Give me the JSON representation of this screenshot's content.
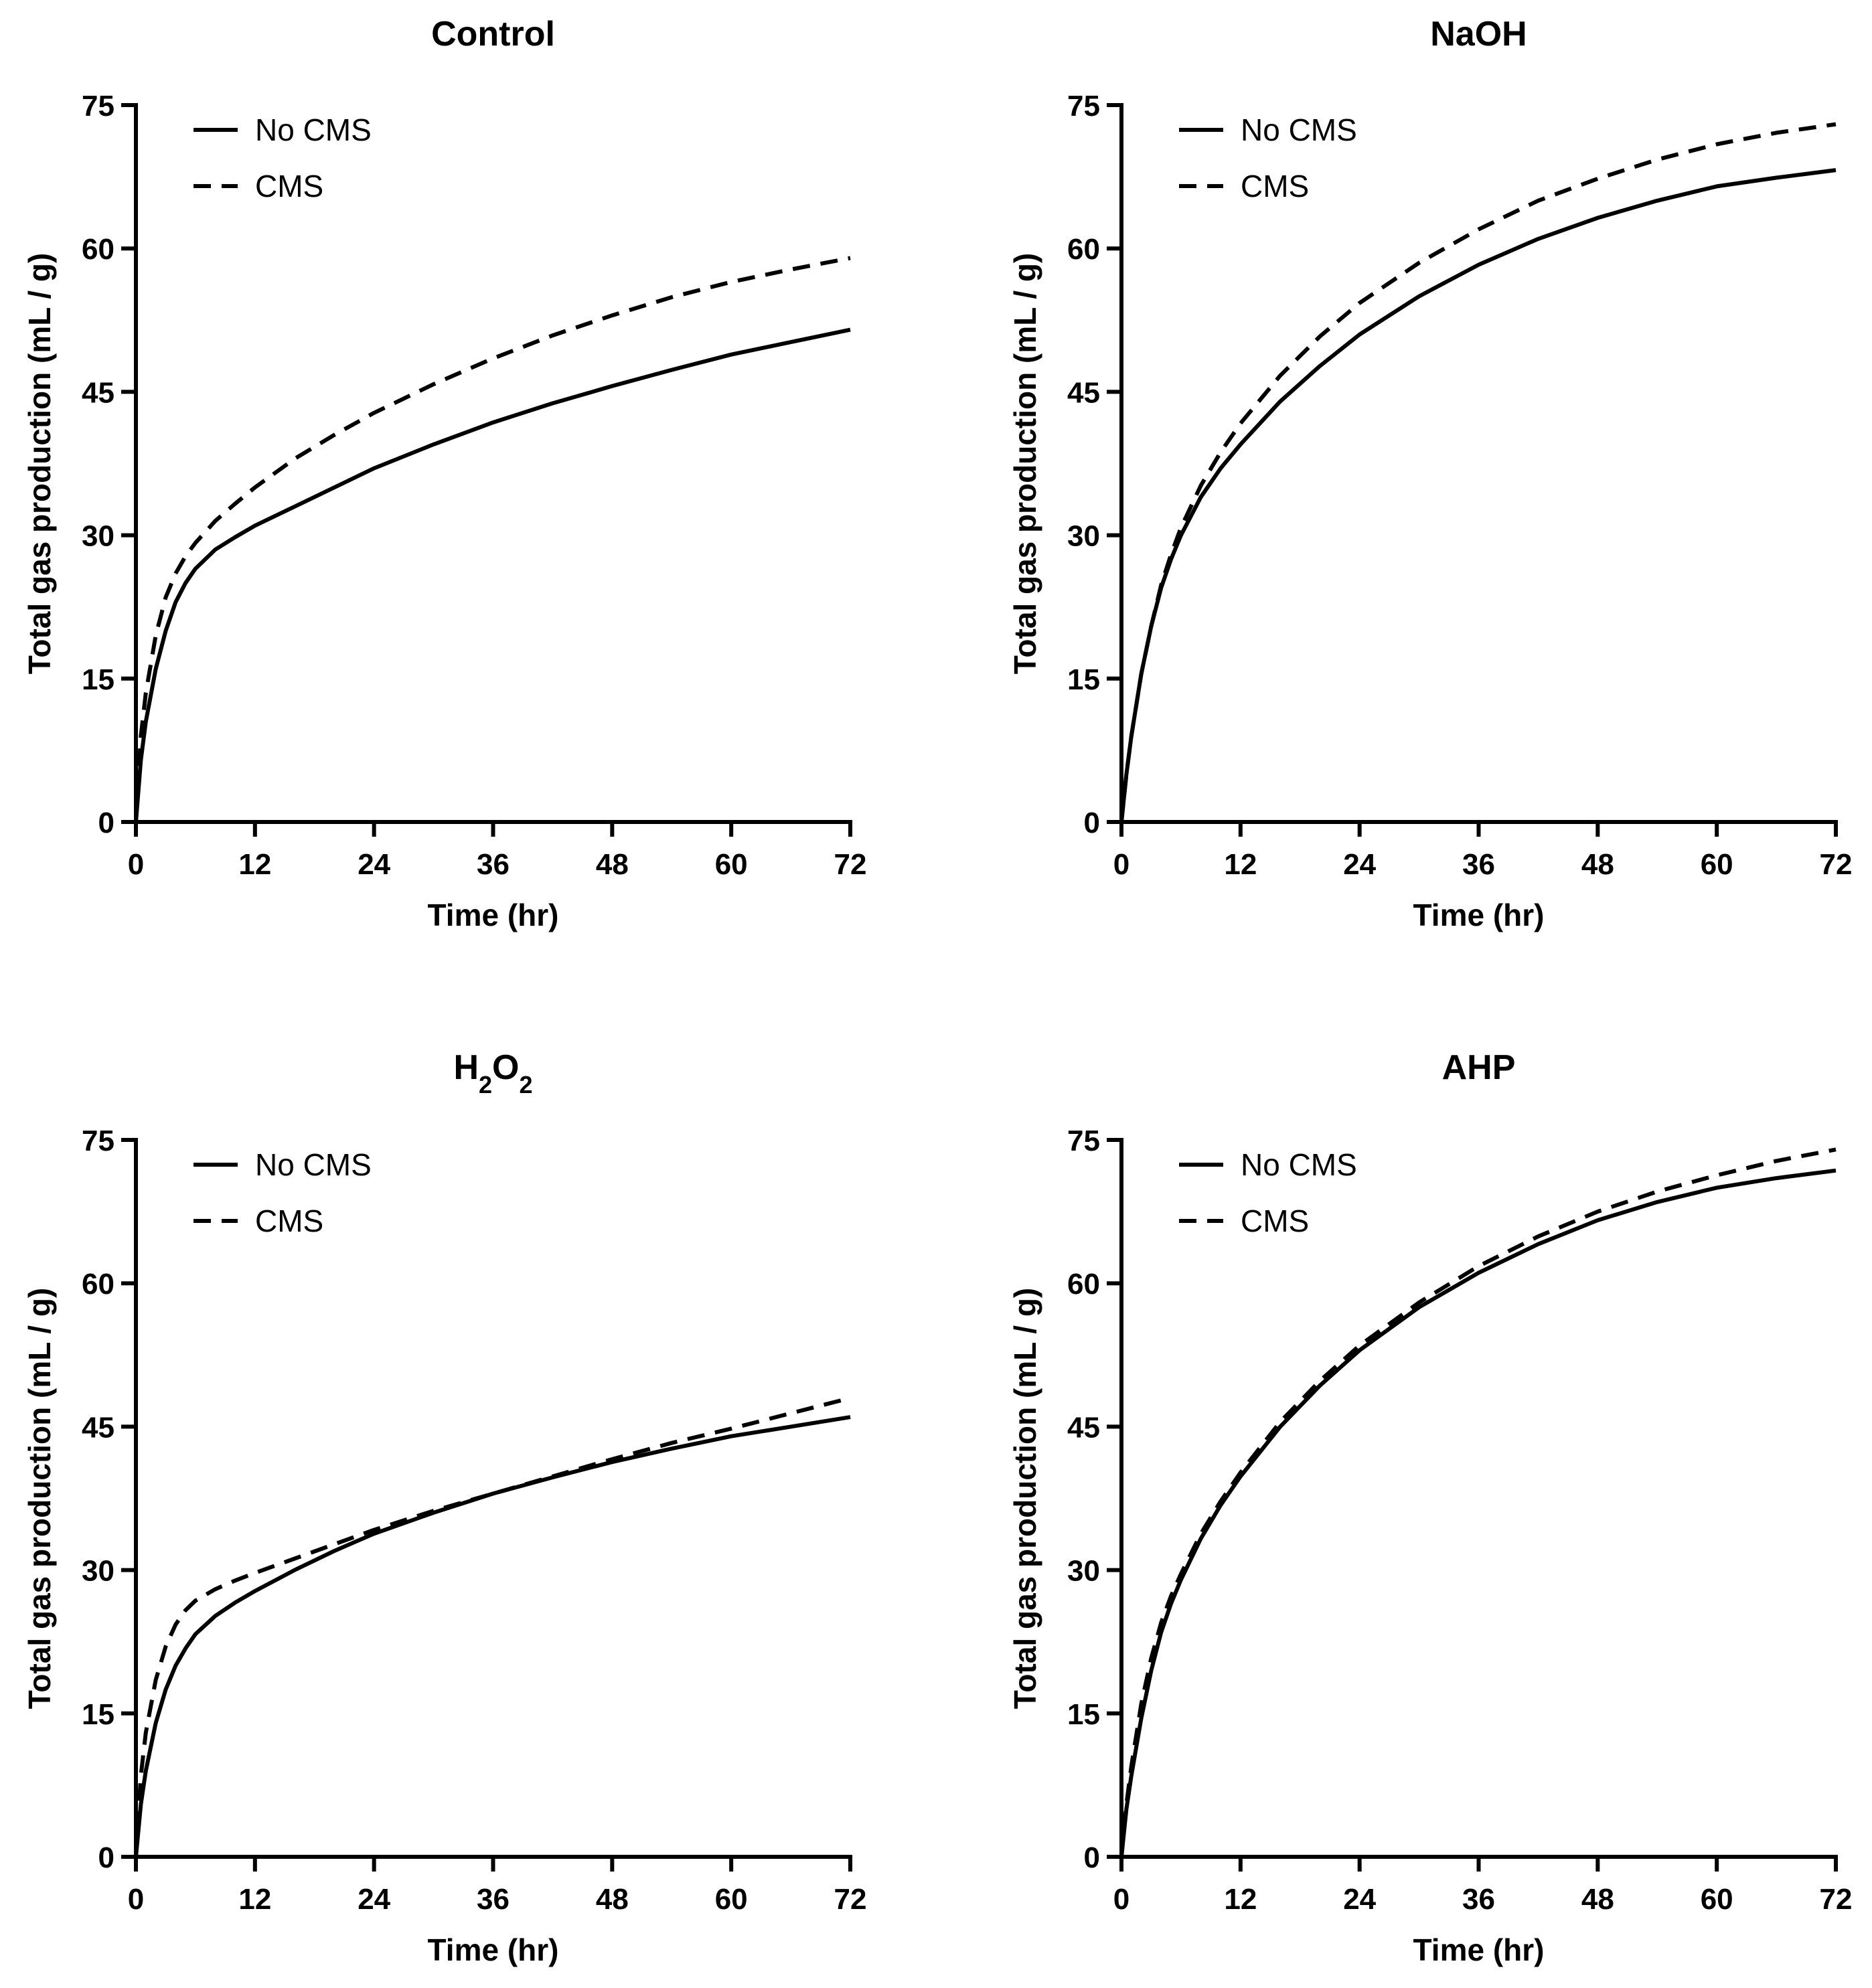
{
  "chart_data": [
    {
      "type": "line",
      "title": "Control",
      "title_sub": "",
      "title_suffix": "",
      "xlabel": "Time (hr)",
      "ylabel": "Total gas production (mL / g)",
      "xlim": [
        0,
        72
      ],
      "ylim": [
        0,
        75
      ],
      "xticks": [
        0,
        12,
        24,
        36,
        48,
        60,
        72
      ],
      "yticks": [
        0,
        15,
        30,
        45,
        60,
        75
      ],
      "legend_position": "top-left",
      "series": [
        {
          "name": "No CMS",
          "style": "solid",
          "x": [
            0,
            0.5,
            1,
            2,
            3,
            4,
            5,
            6,
            8,
            10,
            12,
            16,
            20,
            24,
            30,
            36,
            42,
            48,
            54,
            60,
            66,
            72
          ],
          "y": [
            0,
            6.5,
            10.5,
            16,
            20,
            23,
            25,
            26.5,
            28.5,
            29.8,
            31,
            33,
            35,
            37,
            39.5,
            41.8,
            43.8,
            45.6,
            47.3,
            48.9,
            50.2,
            51.5
          ]
        },
        {
          "name": "CMS",
          "style": "dashed",
          "x": [
            0,
            0.5,
            1,
            2,
            3,
            4,
            5,
            6,
            8,
            10,
            12,
            16,
            20,
            24,
            30,
            36,
            42,
            48,
            54,
            60,
            66,
            72
          ],
          "y": [
            0,
            9,
            13.5,
            19.5,
            23.5,
            26,
            27.8,
            29.2,
            31.5,
            33.3,
            35,
            38,
            40.5,
            42.8,
            45.8,
            48.5,
            50.9,
            53,
            54.9,
            56.5,
            57.8,
            59
          ]
        }
      ]
    },
    {
      "type": "line",
      "title": "NaOH",
      "title_sub": "",
      "title_suffix": "",
      "xlabel": "Time (hr)",
      "ylabel": "Total gas production (mL / g)",
      "xlim": [
        0,
        72
      ],
      "ylim": [
        0,
        75
      ],
      "xticks": [
        0,
        12,
        24,
        36,
        48,
        60,
        72
      ],
      "yticks": [
        0,
        15,
        30,
        45,
        60,
        75
      ],
      "legend_position": "top-left",
      "series": [
        {
          "name": "No CMS",
          "style": "solid",
          "x": [
            0,
            0.5,
            1,
            2,
            3,
            4,
            5,
            6,
            8,
            10,
            12,
            16,
            20,
            24,
            30,
            36,
            42,
            48,
            54,
            60,
            66,
            72
          ],
          "y": [
            0,
            5,
            9,
            15.5,
            20.5,
            24.5,
            27.5,
            30,
            34,
            37,
            39.5,
            44,
            47.7,
            51,
            55,
            58.3,
            61,
            63.2,
            65,
            66.5,
            67.4,
            68.2
          ]
        },
        {
          "name": "CMS",
          "style": "dashed",
          "x": [
            0,
            0.5,
            1,
            2,
            3,
            4,
            5,
            6,
            8,
            10,
            12,
            16,
            20,
            24,
            30,
            36,
            42,
            48,
            54,
            60,
            66,
            72
          ],
          "y": [
            0,
            5,
            9,
            15.5,
            20.5,
            24.8,
            28,
            30.8,
            35.2,
            38.7,
            41.7,
            46.7,
            50.8,
            54.3,
            58.5,
            62,
            65,
            67.3,
            69.3,
            70.9,
            72.1,
            73
          ]
        }
      ]
    },
    {
      "type": "line",
      "title": "H",
      "title_sub": "2",
      "title_suffix": "O",
      "title_sub2": "2",
      "xlabel": "Time (hr)",
      "ylabel": "Total gas production (mL / g)",
      "xlim": [
        0,
        72
      ],
      "ylim": [
        0,
        75
      ],
      "xticks": [
        0,
        12,
        24,
        36,
        48,
        60,
        72
      ],
      "yticks": [
        0,
        15,
        30,
        45,
        60,
        75
      ],
      "legend_position": "top-left",
      "series": [
        {
          "name": "No CMS",
          "style": "solid",
          "x": [
            0,
            0.5,
            1,
            2,
            3,
            4,
            5,
            6,
            8,
            10,
            12,
            16,
            20,
            24,
            30,
            36,
            42,
            48,
            54,
            60,
            66,
            72
          ],
          "y": [
            0,
            5.5,
            9,
            14,
            17.5,
            20,
            21.8,
            23.3,
            25.2,
            26.6,
            27.8,
            30,
            32,
            33.8,
            36,
            38,
            39.7,
            41.3,
            42.7,
            44,
            45,
            46
          ]
        },
        {
          "name": "CMS",
          "style": "dashed",
          "x": [
            0,
            0.5,
            1,
            2,
            3,
            4,
            5,
            6,
            8,
            10,
            12,
            16,
            20,
            24,
            30,
            36,
            42,
            48,
            54,
            60,
            66,
            72
          ],
          "y": [
            0,
            8.5,
            13,
            18.5,
            22,
            24.3,
            25.8,
            26.8,
            28,
            28.9,
            29.7,
            31.2,
            32.7,
            34.2,
            36.2,
            38,
            39.8,
            41.6,
            43.3,
            44.8,
            46.4,
            48
          ]
        }
      ]
    },
    {
      "type": "line",
      "title": "AHP",
      "title_sub": "",
      "title_suffix": "",
      "xlabel": "Time (hr)",
      "ylabel": "Total gas production (mL / g)",
      "xlim": [
        0,
        72
      ],
      "ylim": [
        0,
        75
      ],
      "xticks": [
        0,
        12,
        24,
        36,
        48,
        60,
        72
      ],
      "yticks": [
        0,
        15,
        30,
        45,
        60,
        75
      ],
      "legend_position": "top-left",
      "series": [
        {
          "name": "No CMS",
          "style": "solid",
          "x": [
            0,
            0.5,
            1,
            2,
            3,
            4,
            5,
            6,
            8,
            10,
            12,
            16,
            20,
            24,
            30,
            36,
            42,
            48,
            54,
            60,
            66,
            72
          ],
          "y": [
            0,
            5,
            8.5,
            14.5,
            19.5,
            23.5,
            26.5,
            29,
            33.3,
            36.8,
            39.8,
            45,
            49.3,
            53,
            57.5,
            61.1,
            64.1,
            66.6,
            68.5,
            70,
            71,
            71.8
          ]
        },
        {
          "name": "CMS",
          "style": "dashed",
          "x": [
            0,
            0.5,
            1,
            2,
            3,
            4,
            5,
            6,
            8,
            10,
            12,
            16,
            20,
            24,
            30,
            36,
            42,
            48,
            54,
            60,
            66,
            72
          ],
          "y": [
            0,
            5.5,
            9.5,
            16,
            20.8,
            24.5,
            27.3,
            29.6,
            33.8,
            37.2,
            40.2,
            45.5,
            49.8,
            53.5,
            58,
            61.8,
            64.9,
            67.5,
            69.6,
            71.3,
            72.8,
            74
          ]
        }
      ]
    }
  ]
}
